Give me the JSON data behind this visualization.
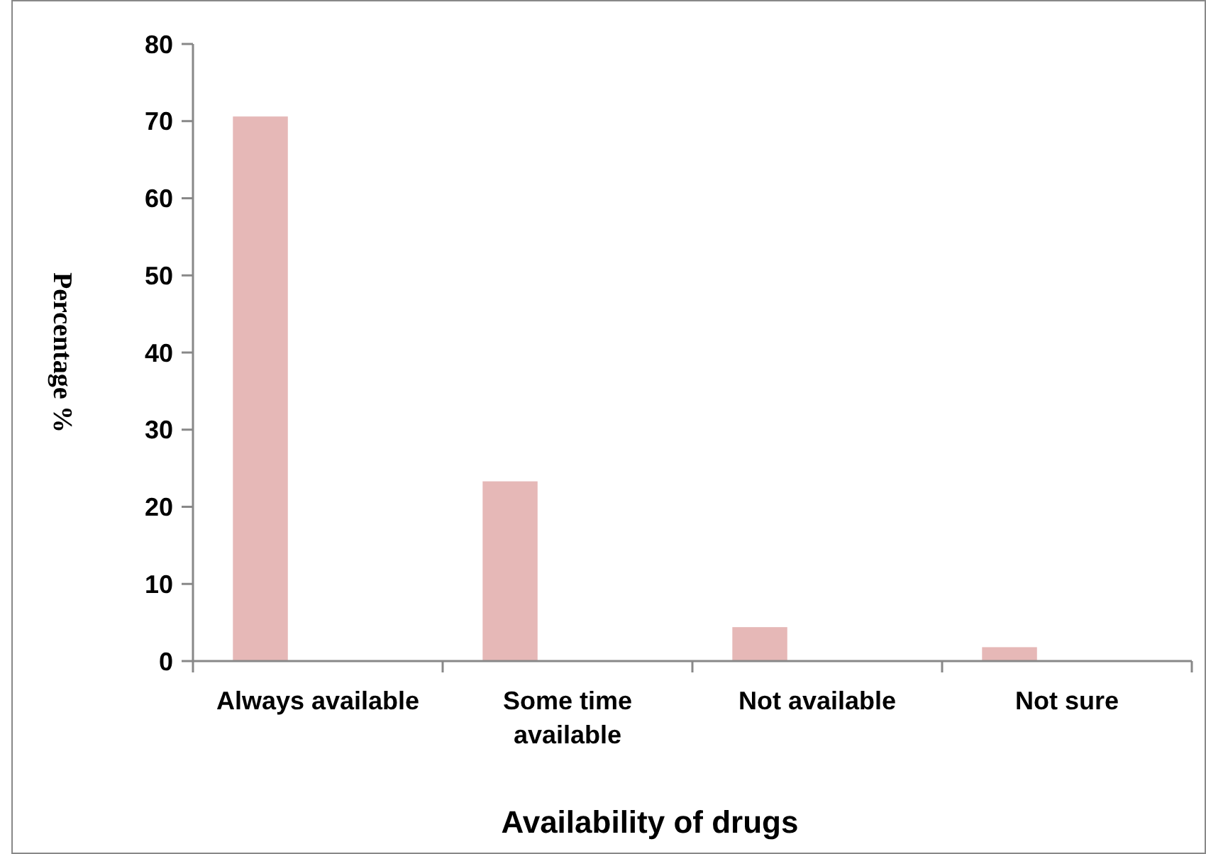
{
  "chart_data": {
    "type": "bar",
    "xlabel": "Availability of drugs",
    "ylabel": "Percentage %",
    "categories": [
      "Always available",
      "Some time available",
      "Not available",
      "Not sure"
    ],
    "values": [
      70.6,
      23.3,
      4.4,
      1.8
    ],
    "color": "#e6b8b7",
    "ylim": [
      0,
      80
    ],
    "yticks": [
      0,
      10,
      20,
      30,
      40,
      50,
      60,
      70,
      80
    ],
    "grid": false
  }
}
